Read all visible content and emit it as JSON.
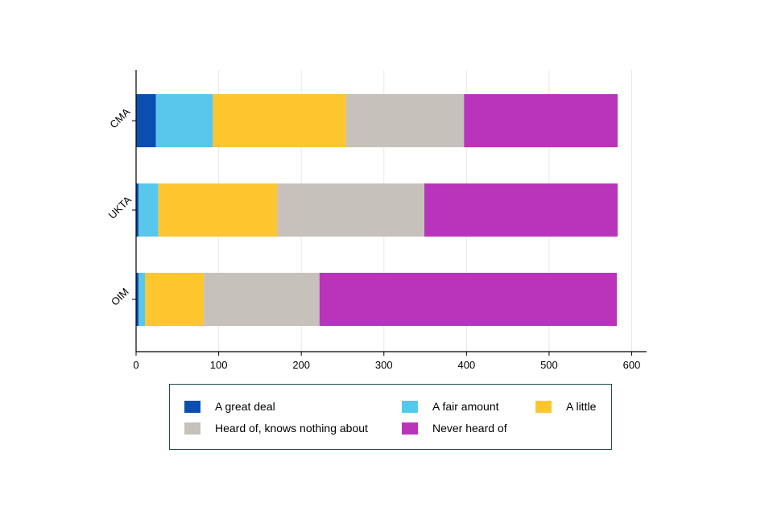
{
  "chart_data": {
    "type": "bar",
    "orientation": "horizontal",
    "stacked": true,
    "categories": [
      "CMA",
      "UKTA",
      "OIM"
    ],
    "series": [
      {
        "name": "A great deal",
        "color": "#0a4eb0",
        "values": [
          24,
          3,
          3
        ]
      },
      {
        "name": "A fair amount",
        "color": "#57c7eb",
        "values": [
          69,
          24,
          8
        ]
      },
      {
        "name": "A little",
        "color": "#fdc62f",
        "values": [
          161,
          144,
          71
        ]
      },
      {
        "name": "Heard of, knows nothing about",
        "color": "#c6c1ba",
        "values": [
          143,
          178,
          140
        ]
      },
      {
        "name": "Never heard of",
        "color": "#b934bb",
        "values": [
          186,
          234,
          360
        ]
      }
    ],
    "x_ticks": [
      "0",
      "100",
      "200",
      "300",
      "400",
      "500",
      "600"
    ],
    "xlim": [
      0,
      618
    ],
    "grid": true,
    "legend_position": "bottom",
    "title": "",
    "xlabel": "",
    "ylabel": ""
  }
}
